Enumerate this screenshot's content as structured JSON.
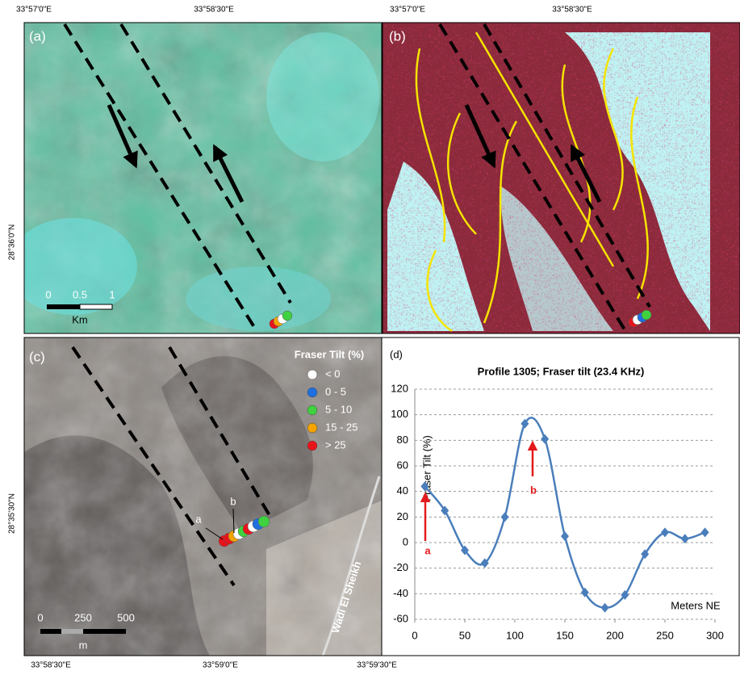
{
  "panels": {
    "a": {
      "label": "(a)",
      "top_labels": [
        "33°57'0\"E",
        "33°58'30\"E"
      ],
      "left_label": "28°36'0\"N",
      "scale": {
        "ticks": [
          "0",
          "0.5",
          "1"
        ],
        "unit": "Km"
      }
    },
    "b": {
      "label": "(b)",
      "top_labels": [
        "33°57'0\"E",
        "33°58'30\"E"
      ]
    },
    "c": {
      "label": "(c)",
      "left_label": "28°35'30\"N",
      "bottom_labels": [
        "33°58'30\"E",
        "33°59'0\"E",
        "33°59'30\"E"
      ],
      "legend": {
        "title": "Fraser Tilt (%)",
        "items": [
          {
            "label": "< 0",
            "color": "#ffffff"
          },
          {
            "label": "0 - 5",
            "color": "#1f6fe0"
          },
          {
            "label": "5 - 10",
            "color": "#3fd13f"
          },
          {
            "label": "15 - 25",
            "color": "#f5a300"
          },
          {
            "label": "> 25",
            "color": "#e8141c"
          }
        ]
      },
      "point_labels": [
        "a",
        "b"
      ],
      "road": "Wadi El Sheikh",
      "scale": {
        "ticks": [
          "0",
          "250",
          "500"
        ],
        "unit": "m"
      }
    }
  },
  "chart_data": {
    "type": "line",
    "panel_label": "(d)",
    "title": "Profile 1305; Fraser tilt (23.4 KHz)",
    "y_label": "Fraser Tilt  (%)",
    "x_label": "Meters NE",
    "x": [
      10,
      30,
      50,
      70,
      90,
      110,
      130,
      150,
      170,
      190,
      210,
      230,
      250,
      270,
      290
    ],
    "values": [
      44,
      25,
      -6,
      -16,
      20,
      93,
      81,
      5,
      -39,
      -51,
      -41,
      -9,
      8,
      3,
      8
    ],
    "color": "#4a7ebb",
    "xlim": [
      0,
      300
    ],
    "xticks": [
      0,
      50,
      100,
      150,
      200,
      250,
      300
    ],
    "ylim": [
      -60,
      120
    ],
    "yticks": [
      -60,
      -40,
      -20,
      0,
      20,
      40,
      60,
      80,
      100,
      120
    ],
    "grid": true,
    "annotations": [
      "a",
      "b"
    ]
  }
}
